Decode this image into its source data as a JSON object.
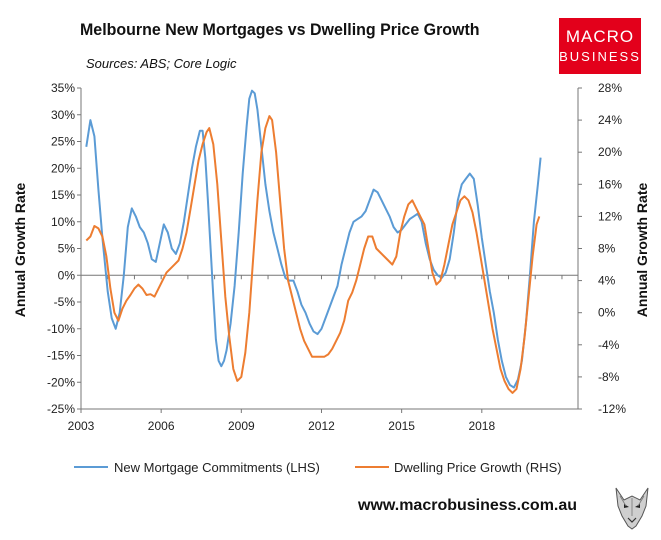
{
  "header": {
    "title": "Melbourne New Mortgages vs Dwelling Price Growth",
    "subtitle": "Sources: ABS; Core Logic",
    "logo_line1": "MACRO",
    "logo_line2": "BUSINESS"
  },
  "footer": {
    "url": "www.macrobusiness.com.au"
  },
  "colors": {
    "blue": "#5b9bd5",
    "orange": "#ed7d31",
    "logo_red": "#e3001b"
  },
  "chart_data": {
    "type": "line",
    "title": "Melbourne New Mortgages vs Dwelling Price Growth",
    "ylabel_left": "Annual Growth Rate",
    "ylabel_right": "Annual Growth Rate",
    "ylim_left": [
      -25,
      35
    ],
    "ylim_right": [
      -12,
      28
    ],
    "xlim": [
      2003,
      2021.6
    ],
    "xticks": [
      "2003",
      "2006",
      "2009",
      "2012",
      "2015",
      "2018"
    ],
    "yticks_left": [
      "35%",
      "30%",
      "25%",
      "20%",
      "15%",
      "10%",
      "5%",
      "0%",
      "-5%",
      "-10%",
      "-15%",
      "-20%",
      "-25%"
    ],
    "yticks_right": [
      "28%",
      "24%",
      "20%",
      "16%",
      "12%",
      "8%",
      "4%",
      "0%",
      "-4%",
      "-8%",
      "-12%"
    ],
    "grid": false,
    "legend": "bottom",
    "series": [
      {
        "name": "New Mortgage Commitments (LHS)",
        "axis": "left",
        "color": "#5b9bd5",
        "points": [
          [
            2003.2,
            24
          ],
          [
            2003.35,
            29
          ],
          [
            2003.5,
            26
          ],
          [
            2003.65,
            16
          ],
          [
            2003.8,
            7
          ],
          [
            2004.0,
            -3
          ],
          [
            2004.15,
            -8
          ],
          [
            2004.3,
            -10
          ],
          [
            2004.45,
            -7
          ],
          [
            2004.6,
            0
          ],
          [
            2004.75,
            9
          ],
          [
            2004.9,
            12.5
          ],
          [
            2005.05,
            11
          ],
          [
            2005.2,
            9
          ],
          [
            2005.35,
            8
          ],
          [
            2005.5,
            6
          ],
          [
            2005.65,
            3
          ],
          [
            2005.8,
            2.5
          ],
          [
            2005.95,
            6
          ],
          [
            2006.1,
            9.5
          ],
          [
            2006.25,
            8
          ],
          [
            2006.4,
            5
          ],
          [
            2006.55,
            4
          ],
          [
            2006.7,
            6
          ],
          [
            2006.85,
            10
          ],
          [
            2007.0,
            15
          ],
          [
            2007.15,
            20
          ],
          [
            2007.3,
            24
          ],
          [
            2007.45,
            27
          ],
          [
            2007.55,
            27
          ],
          [
            2007.65,
            22
          ],
          [
            2007.75,
            14
          ],
          [
            2007.85,
            5
          ],
          [
            2007.95,
            -4
          ],
          [
            2008.05,
            -12
          ],
          [
            2008.15,
            -16
          ],
          [
            2008.25,
            -17
          ],
          [
            2008.35,
            -16
          ],
          [
            2008.45,
            -14
          ],
          [
            2008.6,
            -9
          ],
          [
            2008.75,
            -2
          ],
          [
            2008.9,
            8
          ],
          [
            2009.05,
            19
          ],
          [
            2009.2,
            28
          ],
          [
            2009.3,
            33
          ],
          [
            2009.4,
            34.5
          ],
          [
            2009.5,
            34
          ],
          [
            2009.6,
            31
          ],
          [
            2009.75,
            24
          ],
          [
            2009.9,
            17
          ],
          [
            2010.05,
            12
          ],
          [
            2010.2,
            8
          ],
          [
            2010.35,
            5
          ],
          [
            2010.5,
            2
          ],
          [
            2010.65,
            -0.5
          ],
          [
            2010.8,
            -1
          ],
          [
            2010.95,
            -1
          ],
          [
            2011.1,
            -3
          ],
          [
            2011.25,
            -5.5
          ],
          [
            2011.4,
            -7
          ],
          [
            2011.55,
            -9
          ],
          [
            2011.7,
            -10.5
          ],
          [
            2011.85,
            -11
          ],
          [
            2012.0,
            -10
          ],
          [
            2012.15,
            -8
          ],
          [
            2012.3,
            -6
          ],
          [
            2012.45,
            -4
          ],
          [
            2012.6,
            -2
          ],
          [
            2012.75,
            2
          ],
          [
            2012.9,
            5
          ],
          [
            2013.05,
            8
          ],
          [
            2013.2,
            10
          ],
          [
            2013.35,
            10.5
          ],
          [
            2013.5,
            11
          ],
          [
            2013.65,
            12
          ],
          [
            2013.8,
            14
          ],
          [
            2013.95,
            16
          ],
          [
            2014.1,
            15.5
          ],
          [
            2014.25,
            14
          ],
          [
            2014.4,
            12.5
          ],
          [
            2014.55,
            11
          ],
          [
            2014.7,
            9
          ],
          [
            2014.85,
            8
          ],
          [
            2015.0,
            8.5
          ],
          [
            2015.15,
            9.5
          ],
          [
            2015.3,
            10.5
          ],
          [
            2015.45,
            11
          ],
          [
            2015.6,
            11.5
          ],
          [
            2015.75,
            10
          ],
          [
            2015.9,
            6
          ],
          [
            2016.05,
            3
          ],
          [
            2016.2,
            1
          ],
          [
            2016.35,
            0
          ],
          [
            2016.5,
            -0.5
          ],
          [
            2016.65,
            0.5
          ],
          [
            2016.8,
            3
          ],
          [
            2016.95,
            8
          ],
          [
            2017.1,
            14
          ],
          [
            2017.25,
            17
          ],
          [
            2017.4,
            18
          ],
          [
            2017.55,
            19
          ],
          [
            2017.7,
            18
          ],
          [
            2017.85,
            13
          ],
          [
            2018.0,
            7
          ],
          [
            2018.15,
            2
          ],
          [
            2018.3,
            -3
          ],
          [
            2018.45,
            -7
          ],
          [
            2018.6,
            -12
          ],
          [
            2018.75,
            -16
          ],
          [
            2018.9,
            -19
          ],
          [
            2019.05,
            -20.5
          ],
          [
            2019.2,
            -21
          ],
          [
            2019.35,
            -19.5
          ],
          [
            2019.5,
            -16
          ],
          [
            2019.65,
            -9
          ],
          [
            2019.8,
            0
          ],
          [
            2019.95,
            10
          ],
          [
            2020.1,
            17
          ],
          [
            2020.2,
            22
          ]
        ]
      },
      {
        "name": "Dwelling Price Growth (RHS)",
        "axis": "right",
        "color": "#ed7d31",
        "points": [
          [
            2003.2,
            9
          ],
          [
            2003.35,
            9.5
          ],
          [
            2003.5,
            10.8
          ],
          [
            2003.65,
            10.5
          ],
          [
            2003.8,
            9.5
          ],
          [
            2003.95,
            7
          ],
          [
            2004.1,
            3
          ],
          [
            2004.25,
            0
          ],
          [
            2004.4,
            -1
          ],
          [
            2004.55,
            0.5
          ],
          [
            2004.7,
            1.5
          ],
          [
            2004.85,
            2.2
          ],
          [
            2005.0,
            3
          ],
          [
            2005.15,
            3.5
          ],
          [
            2005.3,
            3
          ],
          [
            2005.45,
            2.2
          ],
          [
            2005.6,
            2.3
          ],
          [
            2005.75,
            2
          ],
          [
            2005.9,
            3
          ],
          [
            2006.05,
            4
          ],
          [
            2006.2,
            5
          ],
          [
            2006.35,
            5.5
          ],
          [
            2006.5,
            6
          ],
          [
            2006.65,
            6.5
          ],
          [
            2006.8,
            8
          ],
          [
            2006.95,
            10
          ],
          [
            2007.1,
            13
          ],
          [
            2007.25,
            16
          ],
          [
            2007.4,
            19
          ],
          [
            2007.55,
            21
          ],
          [
            2007.7,
            22.5
          ],
          [
            2007.8,
            23
          ],
          [
            2007.95,
            21
          ],
          [
            2008.1,
            16
          ],
          [
            2008.25,
            9
          ],
          [
            2008.4,
            2
          ],
          [
            2008.55,
            -3
          ],
          [
            2008.7,
            -7
          ],
          [
            2008.85,
            -8.5
          ],
          [
            2009.0,
            -8
          ],
          [
            2009.15,
            -5
          ],
          [
            2009.3,
            0
          ],
          [
            2009.45,
            7
          ],
          [
            2009.6,
            14
          ],
          [
            2009.75,
            20
          ],
          [
            2009.9,
            23
          ],
          [
            2010.05,
            24.5
          ],
          [
            2010.15,
            24
          ],
          [
            2010.3,
            20
          ],
          [
            2010.45,
            14
          ],
          [
            2010.6,
            8
          ],
          [
            2010.75,
            4
          ],
          [
            2010.9,
            2
          ],
          [
            2011.05,
            0
          ],
          [
            2011.2,
            -2
          ],
          [
            2011.35,
            -3.5
          ],
          [
            2011.5,
            -4.5
          ],
          [
            2011.65,
            -5.5
          ],
          [
            2011.8,
            -5.5
          ],
          [
            2011.95,
            -5.5
          ],
          [
            2012.1,
            -5.5
          ],
          [
            2012.25,
            -5.2
          ],
          [
            2012.4,
            -4.5
          ],
          [
            2012.55,
            -3.5
          ],
          [
            2012.7,
            -2.5
          ],
          [
            2012.85,
            -1
          ],
          [
            2013.0,
            1.5
          ],
          [
            2013.15,
            2.5
          ],
          [
            2013.3,
            4
          ],
          [
            2013.45,
            6
          ],
          [
            2013.6,
            8
          ],
          [
            2013.75,
            9.5
          ],
          [
            2013.9,
            9.5
          ],
          [
            2014.05,
            8
          ],
          [
            2014.2,
            7.5
          ],
          [
            2014.35,
            7
          ],
          [
            2014.5,
            6.5
          ],
          [
            2014.65,
            6
          ],
          [
            2014.8,
            7
          ],
          [
            2014.95,
            10
          ],
          [
            2015.1,
            12
          ],
          [
            2015.25,
            13.5
          ],
          [
            2015.4,
            14
          ],
          [
            2015.55,
            13
          ],
          [
            2015.7,
            12
          ],
          [
            2015.85,
            11
          ],
          [
            2016.0,
            8
          ],
          [
            2016.15,
            5
          ],
          [
            2016.3,
            3.5
          ],
          [
            2016.45,
            4
          ],
          [
            2016.6,
            6
          ],
          [
            2016.75,
            8.5
          ],
          [
            2016.9,
            11
          ],
          [
            2017.05,
            12.5
          ],
          [
            2017.2,
            14
          ],
          [
            2017.35,
            14.5
          ],
          [
            2017.5,
            14
          ],
          [
            2017.65,
            12.5
          ],
          [
            2017.8,
            10
          ],
          [
            2017.95,
            7
          ],
          [
            2018.1,
            4
          ],
          [
            2018.25,
            1
          ],
          [
            2018.4,
            -2
          ],
          [
            2018.55,
            -4.5
          ],
          [
            2018.7,
            -7
          ],
          [
            2018.85,
            -8.5
          ],
          [
            2019.0,
            -9.5
          ],
          [
            2019.15,
            -10
          ],
          [
            2019.3,
            -9.5
          ],
          [
            2019.45,
            -7
          ],
          [
            2019.6,
            -3
          ],
          [
            2019.75,
            2
          ],
          [
            2019.9,
            7
          ],
          [
            2020.05,
            11
          ],
          [
            2020.15,
            12
          ]
        ]
      }
    ]
  }
}
